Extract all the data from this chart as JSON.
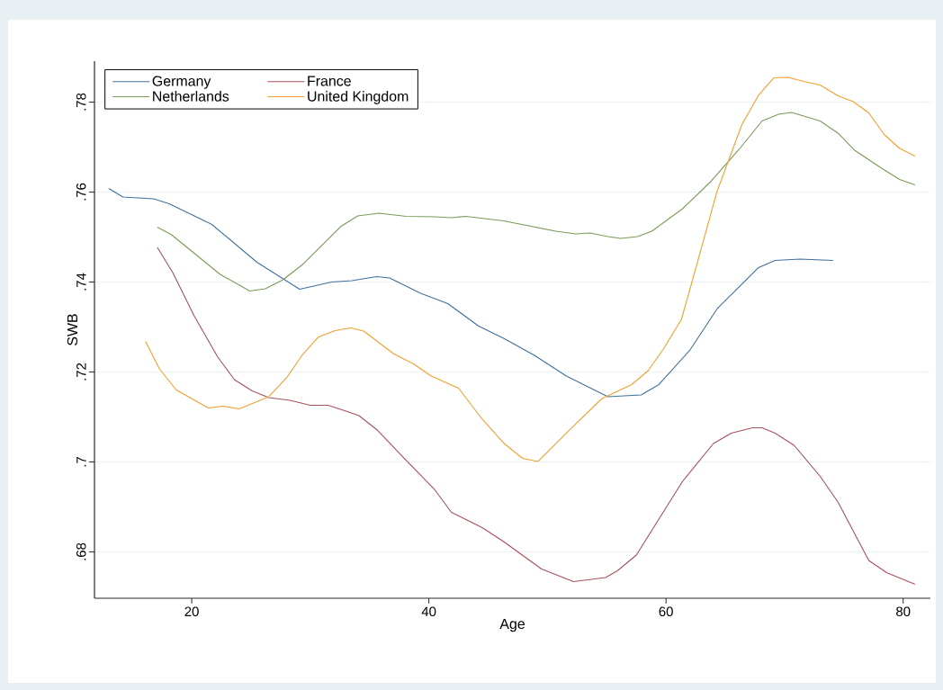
{
  "chart_data": {
    "type": "line",
    "xlabel": "Age",
    "ylabel": "SWB",
    "xlim": [
      11.8,
      82.3
    ],
    "ylim": [
      0.6697,
      0.7891
    ],
    "xticks": [
      20,
      40,
      60,
      80
    ],
    "yticks": [
      {
        "value": 0.68,
        "label": ".68"
      },
      {
        "value": 0.7,
        "label": ".7"
      },
      {
        "value": 0.72,
        "label": ".72"
      },
      {
        "value": 0.74,
        "label": ".74"
      },
      {
        "value": 0.76,
        "label": ".76"
      },
      {
        "value": 0.78,
        "label": ".78"
      }
    ],
    "grid": "y",
    "legend": "top left",
    "marker": "none",
    "line_style": "solid",
    "series": [
      {
        "name": "Germany",
        "color": "#41709c",
        "x": [
          13.0,
          14.2,
          16.8,
          18.1,
          21.7,
          25.5,
          29.1,
          31.8,
          33.5,
          35.6,
          36.7,
          39.3,
          41.6,
          44.2,
          46.3,
          48.9,
          51.6,
          55.1,
          57.9,
          59.4,
          62.0,
          64.3,
          67.8,
          69.2,
          71.3,
          74.1
        ],
        "values": [
          0.7608,
          0.7589,
          0.7585,
          0.7574,
          0.7528,
          0.7444,
          0.7384,
          0.74,
          0.7403,
          0.7412,
          0.7409,
          0.7375,
          0.7352,
          0.7302,
          0.7275,
          0.7237,
          0.7191,
          0.7145,
          0.7149,
          0.7172,
          0.7248,
          0.734,
          0.7432,
          0.7448,
          0.7451,
          0.7448
        ]
      },
      {
        "name": "France",
        "color": "#a8505e",
        "x": [
          17.1,
          18.4,
          20.2,
          22.2,
          23.6,
          25.1,
          26.5,
          28.3,
          30.0,
          31.5,
          32.9,
          34.1,
          35.6,
          38.1,
          40.5,
          41.9,
          44.5,
          46.3,
          49.5,
          52.2,
          54.9,
          55.9,
          57.5,
          59.4,
          61.4,
          64.0,
          65.5,
          67.3,
          68.1,
          69.2,
          70.8,
          73.0,
          74.5,
          77.1,
          78.6,
          81.0
        ],
        "values": [
          0.7477,
          0.7421,
          0.7325,
          0.7233,
          0.7183,
          0.7158,
          0.7143,
          0.7137,
          0.7126,
          0.7126,
          0.7114,
          0.7103,
          0.7072,
          0.7003,
          0.6938,
          0.6888,
          0.6854,
          0.6823,
          0.6762,
          0.6734,
          0.6743,
          0.6758,
          0.6793,
          0.6873,
          0.6957,
          0.7041,
          0.7064,
          0.7076,
          0.7076,
          0.7064,
          0.7037,
          0.6968,
          0.6911,
          0.6781,
          0.6754,
          0.6728
        ]
      },
      {
        "name": "Netherlands",
        "color": "#7a9a58",
        "x": [
          17.1,
          18.3,
          22.4,
          24.9,
          26.2,
          27.7,
          29.4,
          32.6,
          34.0,
          35.8,
          38.1,
          40.5,
          41.9,
          43.1,
          46.3,
          50.7,
          52.4,
          53.6,
          55.1,
          56.2,
          57.6,
          58.8,
          61.4,
          63.8,
          66.1,
          68.1,
          69.5,
          70.6,
          73.0,
          74.5,
          75.9,
          78.3,
          79.7,
          81.0
        ],
        "values": [
          0.7522,
          0.7505,
          0.7417,
          0.738,
          0.7385,
          0.7405,
          0.744,
          0.7524,
          0.7547,
          0.7553,
          0.7546,
          0.7545,
          0.7543,
          0.7546,
          0.7536,
          0.7513,
          0.7507,
          0.7509,
          0.7501,
          0.7497,
          0.7501,
          0.7513,
          0.7563,
          0.7624,
          0.7693,
          0.7758,
          0.7773,
          0.7777,
          0.7758,
          0.7731,
          0.7693,
          0.7651,
          0.7628,
          0.7616
        ]
      },
      {
        "name": "United Kingdom",
        "color": "#f0a030",
        "x": [
          16.1,
          17.3,
          18.7,
          21.4,
          22.6,
          24.0,
          26.5,
          28.0,
          29.3,
          30.7,
          32.1,
          33.4,
          34.5,
          37.0,
          38.7,
          40.2,
          42.5,
          44.5,
          46.3,
          47.9,
          49.2,
          51.9,
          54.6,
          57.1,
          58.5,
          59.8,
          61.3,
          62.2,
          64.3,
          66.4,
          67.8,
          69.1,
          70.3,
          71.6,
          73.0,
          74.5,
          75.8,
          77.1,
          78.4,
          79.7,
          81.0
        ],
        "values": [
          0.7268,
          0.7206,
          0.716,
          0.712,
          0.7124,
          0.7118,
          0.7145,
          0.7187,
          0.7237,
          0.7278,
          0.7292,
          0.7298,
          0.7291,
          0.7241,
          0.7218,
          0.7191,
          0.7164,
          0.7095,
          0.7042,
          0.7008,
          0.7001,
          0.7072,
          0.7141,
          0.7172,
          0.7203,
          0.7252,
          0.7317,
          0.7401,
          0.7601,
          0.775,
          0.7815,
          0.7854,
          0.7855,
          0.7846,
          0.7838,
          0.7814,
          0.7801,
          0.7776,
          0.7728,
          0.7697,
          0.768
        ]
      }
    ]
  }
}
